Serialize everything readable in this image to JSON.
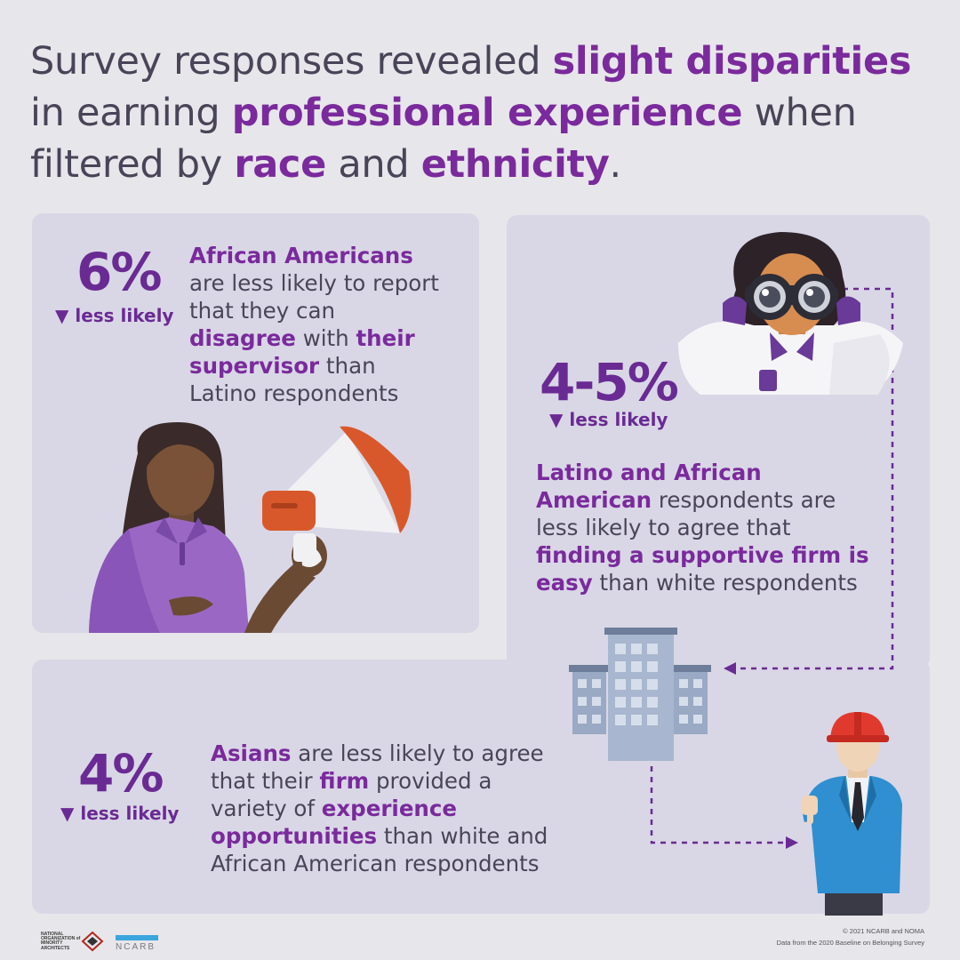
{
  "headline": {
    "p1": "Survey responses revealed ",
    "h1": "slight disparities",
    "p2": " in earning ",
    "h2": "professional experience",
    "p3": " when filtered by ",
    "h3": "race",
    "p4": " and ",
    "h4": "ethnicity",
    "p5": "."
  },
  "stat1": {
    "number": "6%",
    "less": "▼ less likely",
    "t1": "African Americans",
    "t2": " are less likely to report that they can ",
    "t3": "disagree",
    "t4": " with ",
    "t5": "their supervisor",
    "t6": " than Latino respondents"
  },
  "stat2": {
    "number": "4-5%",
    "less": "▼ less likely",
    "t1": "Latino and African American",
    "t2": " respondents are less likely to agree that ",
    "t3": "finding a supportive firm is easy",
    "t4": " than white respondents"
  },
  "stat3": {
    "number": "4%",
    "less": "▼ less likely",
    "t1": "Asians",
    "t2": " are less likely to agree that their ",
    "t3": "firm",
    "t4": " provided a variety of ",
    "t5": "experience opportunities",
    "t6": " than white and African American respondents"
  },
  "footer": {
    "copyright": "© 2021 NCARB and NOMA",
    "source": "Data from the 2020 Baseline on Belonging Survey",
    "noma_logo_text": "NATIONAL ORGANIZATION of MINORITY ARCHITECTS",
    "ncarb_logo_text": "NCARB"
  },
  "colors": {
    "accent": "#7a2a9c",
    "text": "#4a4458",
    "panel": "#d9d7e6",
    "background": "#e7e6ea"
  }
}
